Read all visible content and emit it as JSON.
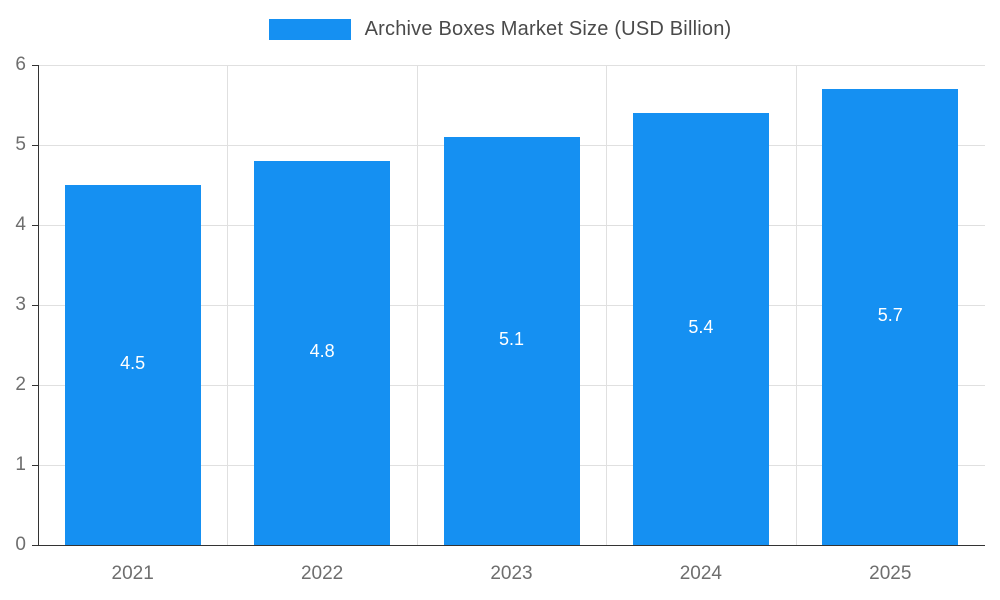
{
  "chart_data": {
    "type": "bar",
    "title": "Archive Boxes Market Size (USD Billion)",
    "categories": [
      "2021",
      "2022",
      "2023",
      "2024",
      "2025"
    ],
    "series": [
      {
        "name": "Archive Boxes Market Size (USD Billion)",
        "values": [
          4.5,
          4.8,
          5.1,
          5.4,
          5.7
        ]
      }
    ],
    "data_labels": [
      "4.5",
      "4.8",
      "5.1",
      "5.4",
      "5.7"
    ],
    "xlabel": "",
    "ylabel": "",
    "ylim": [
      0,
      6
    ],
    "yticks": [
      0,
      1,
      2,
      3,
      4,
      5,
      6
    ],
    "grid": true,
    "legend_position": "top",
    "colors": {
      "bar": "#1590f2",
      "bar_label": "#ffffff",
      "axis_text": "#6e6e6e",
      "gridline": "#e0e0e0",
      "axis_line": "#333333",
      "title_text": "#4a4a4a"
    }
  },
  "legend": {
    "label": "Archive Boxes Market Size (USD Billion)"
  }
}
